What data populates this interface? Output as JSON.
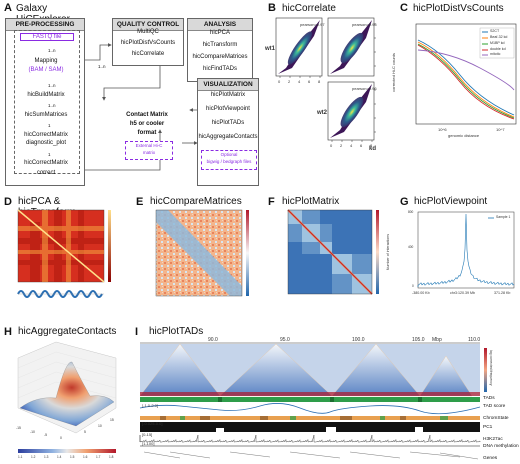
{
  "panelA": {
    "letter": "A",
    "title": "Galaxy HiCExplorer Workflows",
    "preprocessing": {
      "header": "PRE-PROCESSING",
      "fastq": "FASTQ file",
      "n1": "1..n",
      "mapping": "Mapping",
      "bamsam": "(BAM / SAM)",
      "n2": "1..n",
      "buildmatrix": "hicBuildMatrix",
      "n3": "1..n",
      "summatrices": "hicSumMatrices",
      "n4": "1",
      "correctmatrix": "hicCorrectMatrix",
      "diagnostic": "diagnostic_plot",
      "n5": "1",
      "correct1": "hicCorrectMatrix",
      "correct2": "correct",
      "sideways": "hicSumMatrixWorkflow"
    },
    "qc": {
      "header": "QUALITY CONTROL",
      "items": [
        "MultiQC",
        "hicPlotDistVsCounts",
        "hicCorrelate"
      ],
      "n": "1..n"
    },
    "analysis": {
      "header": "ANALYSIS",
      "items": [
        "hicPCA",
        "hicTransform",
        "hicCompareMatrices",
        "hicFindTADs"
      ]
    },
    "contact": {
      "line1": "Contact Matrix",
      "line2": "h5 or cooler",
      "line3": "format",
      "ext1": "External Hi-C",
      "ext2": "matrix"
    },
    "visualization": {
      "header": "VISUALIZATION",
      "items": [
        "hicPlotMatrix",
        "hicPlotViewpoint",
        "hicPlotTADs",
        "hicAggregateContacts"
      ],
      "opt1": "Optional",
      "opt2": "bigwig / bedgraph files"
    }
  },
  "panelB": {
    "letter": "B",
    "title": "hicCorrelate",
    "wt1": "wt1",
    "wt2": "wt2",
    "kd": "kd",
    "pearson": [
      "pearson=0.97",
      "pearson=0.95",
      "pearson=0.96"
    ],
    "ticks": [
      "0",
      "2",
      "4",
      "6",
      "8"
    ]
  },
  "panelC": {
    "letter": "C",
    "title": "hicPlotDistVsCounts",
    "xlabel": "genomic distance",
    "ylabel": "corrected Hi-C counts",
    "xticks": [
      "10^6",
      "10^7"
    ],
    "legend": [
      "S2CT",
      "Beaf-32 kd",
      "M1BP kd",
      "double kd",
      "mitotic"
    ],
    "colors": [
      "#1f77b4",
      "#ff7f0e",
      "#2ca02c",
      "#d62728",
      "#9467bd"
    ]
  },
  "panelD": {
    "letter": "D",
    "title": "hicPCA & hicTransform"
  },
  "panelE": {
    "letter": "E",
    "title": "hicCompareMatrices"
  },
  "panelF": {
    "letter": "F",
    "title": "hicPlotMatrix"
  },
  "panelG": {
    "letter": "G",
    "title": "hicPlotViewpoint",
    "legend": "Sample 1",
    "xticks": [
      "-380.00 Kb",
      "chr3:120.39 Mb",
      "371.28 Kb"
    ],
    "ylabel": "Number of interactions",
    "yticks": [
      "800",
      "700",
      "600",
      "500",
      "400",
      "300",
      "200",
      "100",
      "0"
    ]
  },
  "panelH": {
    "letter": "H",
    "title": "hicAggregateContacts",
    "axis": [
      "-15",
      "-10",
      "-5",
      "0",
      "5",
      "10",
      "15"
    ],
    "zticks": [
      "1.1",
      "1.2",
      "1.3",
      "1.4",
      "1.5",
      "1.6",
      "1.7",
      "1.8"
    ],
    "cbticks": [
      "1.1",
      "1.2",
      "1.3",
      "1.4",
      "1.5",
      "1.6",
      "1.7",
      "1.8"
    ]
  },
  "panelI": {
    "letter": "I",
    "title": "hicPlotTADs",
    "coords": [
      "90.0",
      "95.0",
      "100.0",
      "105.0",
      "Mbp",
      "110.0"
    ],
    "colorbar": "log corrected frequency",
    "tracks": [
      "TADs",
      "TAD score",
      "ChromState",
      "PC1",
      "H3K27ac",
      "DNA methylation",
      "Genes"
    ],
    "ranges": [
      "[-1.0-2.0]",
      "[-0.025-0.0]",
      "[0-15]",
      "[1-100]"
    ]
  }
}
